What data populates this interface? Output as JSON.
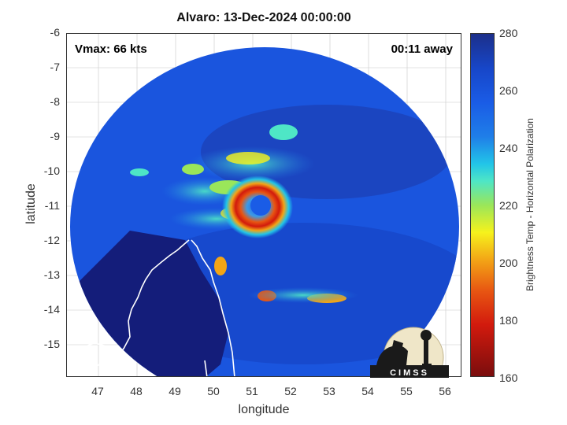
{
  "title": "Alvaro: 13-Dec-2024 00:00:00",
  "overlay": {
    "vmax": "Vmax: 66 kts",
    "distance": "00:11 away"
  },
  "axes": {
    "xlabel": "longitude",
    "ylabel": "latitude",
    "xticks": [
      "47",
      "48",
      "49",
      "50",
      "51",
      "52",
      "53",
      "54",
      "55",
      "56"
    ],
    "yticks": [
      "-6",
      "-7",
      "-8",
      "-9",
      "-10",
      "-11",
      "-12",
      "-13",
      "-14",
      "-15"
    ],
    "xrange": [
      46.2,
      56.4
    ],
    "yrange": [
      -15.9,
      -6.0
    ]
  },
  "colorbar": {
    "label": "Brightness Temp - Horizontal Polarization",
    "ticks": [
      "280",
      "260",
      "240",
      "220",
      "200",
      "180",
      "160"
    ],
    "range": [
      160,
      280
    ]
  },
  "logo": {
    "text": "CIMSS"
  },
  "storm": {
    "center_lon": 51.4,
    "center_lat": -11.0
  },
  "colors": {
    "cold_core": "#d21a0d",
    "warm_bg": "#1746c8",
    "land": "#141d7a",
    "coast": "#ffffff"
  }
}
